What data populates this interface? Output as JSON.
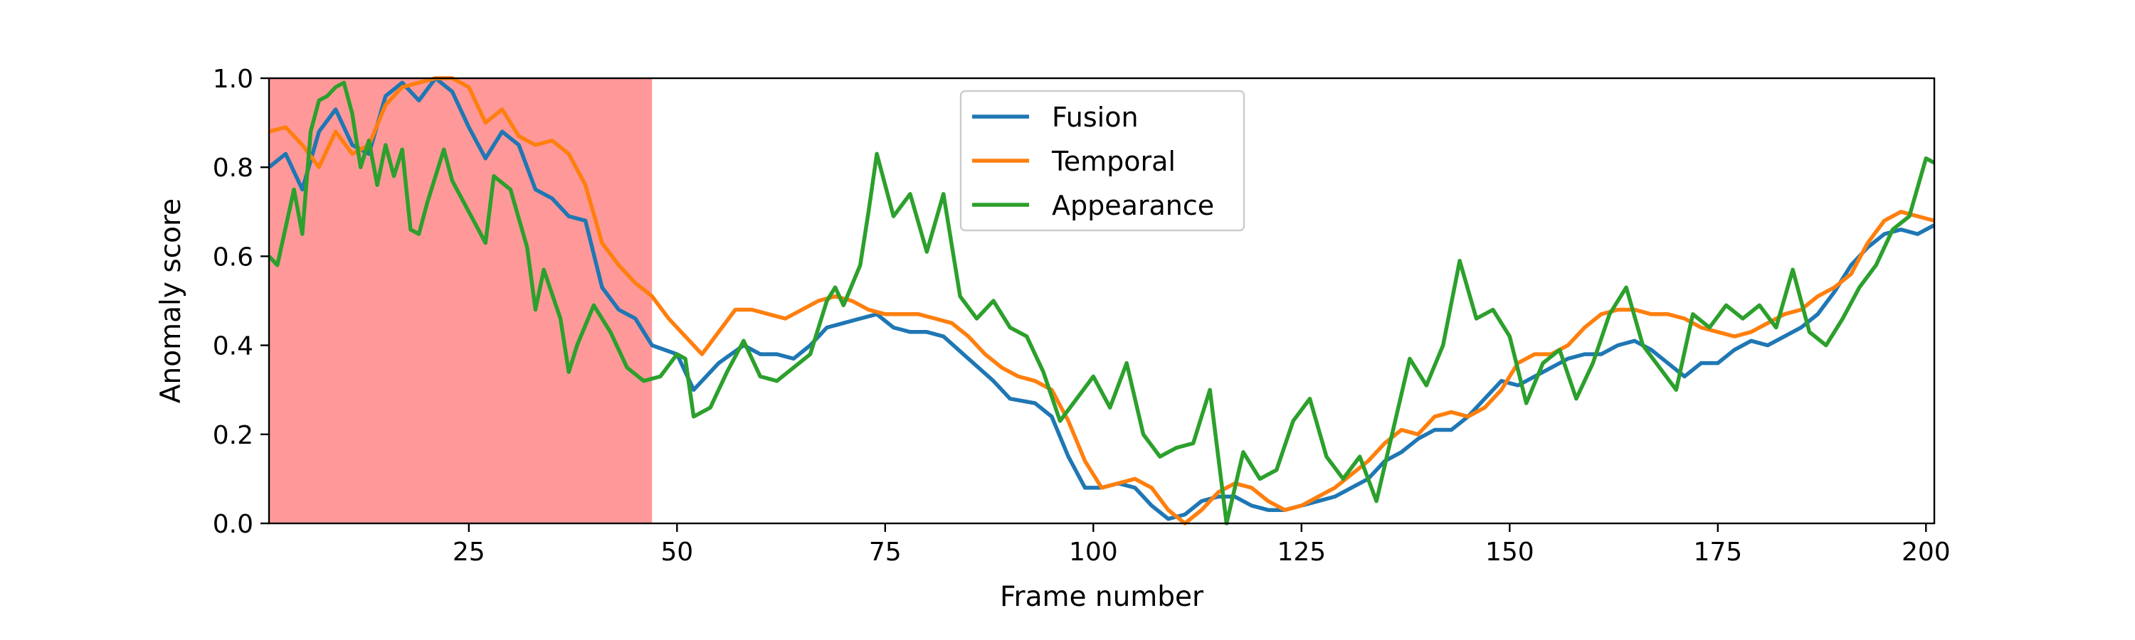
{
  "chart_data": {
    "type": "line",
    "title": "",
    "xlabel": "Frame number",
    "ylabel": "Anomaly score",
    "xlim": [
      1,
      201
    ],
    "ylim": [
      0.0,
      1.0
    ],
    "xticks": [
      25,
      50,
      75,
      100,
      125,
      150,
      175,
      200
    ],
    "xtick_labels": [
      "25",
      "50",
      "75",
      "100",
      "125",
      "150",
      "175",
      "200"
    ],
    "yticks": [
      0.0,
      0.2,
      0.4,
      0.6,
      0.8,
      1.0
    ],
    "ytick_labels": [
      "0.0",
      "0.2",
      "0.4",
      "0.6",
      "0.8",
      "1.0"
    ],
    "grid": false,
    "legend_position": "top-center",
    "highlight_region": {
      "x_start": 1,
      "x_end": 47,
      "color": "#ff9999"
    },
    "series": [
      {
        "name": "Fusion",
        "color": "#1f77b4",
        "x": [
          1,
          3,
          5,
          7,
          9,
          11,
          13,
          15,
          17,
          19,
          21,
          23,
          25,
          27,
          29,
          31,
          33,
          35,
          37,
          39,
          41,
          43,
          45,
          47,
          50,
          52,
          55,
          58,
          60,
          62,
          64,
          66,
          68,
          70,
          72,
          74,
          76,
          78,
          80,
          82,
          85,
          88,
          90,
          93,
          95,
          97,
          99,
          101,
          103,
          105,
          107,
          109,
          111,
          113,
          115,
          117,
          119,
          121,
          123,
          125,
          127,
          129,
          131,
          133,
          135,
          137,
          139,
          141,
          143,
          145,
          147,
          149,
          151,
          153,
          155,
          157,
          159,
          161,
          163,
          165,
          167,
          169,
          171,
          173,
          175,
          177,
          179,
          181,
          183,
          185,
          187,
          189,
          191,
          193,
          195,
          197,
          199,
          201
        ],
        "values": [
          0.8,
          0.83,
          0.75,
          0.88,
          0.93,
          0.85,
          0.83,
          0.96,
          0.99,
          0.95,
          1.0,
          0.97,
          0.89,
          0.82,
          0.88,
          0.85,
          0.75,
          0.73,
          0.69,
          0.68,
          0.53,
          0.48,
          0.46,
          0.4,
          0.38,
          0.3,
          0.36,
          0.4,
          0.38,
          0.38,
          0.37,
          0.4,
          0.44,
          0.45,
          0.46,
          0.47,
          0.44,
          0.43,
          0.43,
          0.42,
          0.37,
          0.32,
          0.28,
          0.27,
          0.24,
          0.15,
          0.08,
          0.08,
          0.09,
          0.08,
          0.04,
          0.01,
          0.02,
          0.05,
          0.06,
          0.06,
          0.04,
          0.03,
          0.03,
          0.04,
          0.05,
          0.06,
          0.08,
          0.1,
          0.14,
          0.16,
          0.19,
          0.21,
          0.21,
          0.24,
          0.28,
          0.32,
          0.31,
          0.33,
          0.35,
          0.37,
          0.38,
          0.38,
          0.4,
          0.41,
          0.39,
          0.36,
          0.33,
          0.36,
          0.36,
          0.39,
          0.41,
          0.4,
          0.42,
          0.44,
          0.47,
          0.52,
          0.58,
          0.62,
          0.65,
          0.66,
          0.65,
          0.67
        ]
      },
      {
        "name": "Temporal",
        "color": "#ff7f0e",
        "x": [
          1,
          3,
          5,
          7,
          9,
          11,
          13,
          15,
          17,
          19,
          21,
          23,
          25,
          27,
          29,
          31,
          33,
          35,
          37,
          39,
          41,
          43,
          45,
          47,
          49,
          51,
          53,
          55,
          57,
          59,
          61,
          63,
          65,
          67,
          69,
          71,
          73,
          75,
          77,
          79,
          81,
          83,
          85,
          87,
          89,
          91,
          93,
          95,
          97,
          99,
          101,
          103,
          105,
          107,
          109,
          111,
          113,
          115,
          117,
          119,
          121,
          123,
          125,
          127,
          129,
          131,
          133,
          135,
          137,
          139,
          141,
          143,
          145,
          147,
          149,
          151,
          153,
          155,
          157,
          159,
          161,
          163,
          165,
          167,
          169,
          171,
          173,
          175,
          177,
          179,
          181,
          183,
          185,
          187,
          189,
          191,
          193,
          195,
          197,
          199,
          201
        ],
        "values": [
          0.88,
          0.89,
          0.85,
          0.8,
          0.88,
          0.83,
          0.85,
          0.94,
          0.98,
          0.99,
          1.0,
          1.0,
          0.98,
          0.9,
          0.93,
          0.87,
          0.85,
          0.86,
          0.83,
          0.76,
          0.63,
          0.58,
          0.54,
          0.51,
          0.46,
          0.42,
          0.38,
          0.43,
          0.48,
          0.48,
          0.47,
          0.46,
          0.48,
          0.5,
          0.51,
          0.5,
          0.48,
          0.47,
          0.47,
          0.47,
          0.46,
          0.45,
          0.42,
          0.38,
          0.35,
          0.33,
          0.32,
          0.3,
          0.23,
          0.14,
          0.08,
          0.09,
          0.1,
          0.08,
          0.03,
          0.0,
          0.03,
          0.07,
          0.09,
          0.08,
          0.05,
          0.03,
          0.04,
          0.06,
          0.08,
          0.11,
          0.14,
          0.18,
          0.21,
          0.2,
          0.24,
          0.25,
          0.24,
          0.26,
          0.3,
          0.36,
          0.38,
          0.38,
          0.4,
          0.44,
          0.47,
          0.48,
          0.48,
          0.47,
          0.47,
          0.46,
          0.44,
          0.43,
          0.42,
          0.43,
          0.45,
          0.47,
          0.48,
          0.51,
          0.53,
          0.56,
          0.63,
          0.68,
          0.7,
          0.69,
          0.68
        ]
      },
      {
        "name": "Appearance",
        "color": "#2ca02c",
        "x": [
          1,
          2,
          4,
          5,
          6,
          7,
          8,
          9,
          10,
          11,
          12,
          13,
          14,
          15,
          16,
          17,
          18,
          19,
          20,
          22,
          23,
          25,
          27,
          28,
          30,
          32,
          33,
          34,
          36,
          37,
          38,
          40,
          42,
          44,
          46,
          48,
          50,
          51,
          52,
          54,
          56,
          58,
          60,
          62,
          64,
          66,
          68,
          69,
          70,
          72,
          73,
          74,
          76,
          78,
          80,
          82,
          84,
          86,
          88,
          90,
          92,
          94,
          96,
          98,
          100,
          102,
          104,
          106,
          108,
          110,
          112,
          114,
          116,
          118,
          120,
          122,
          124,
          126,
          128,
          130,
          132,
          134,
          136,
          138,
          140,
          142,
          144,
          146,
          148,
          150,
          152,
          154,
          156,
          158,
          160,
          162,
          164,
          166,
          168,
          170,
          172,
          174,
          176,
          178,
          180,
          182,
          184,
          186,
          188,
          190,
          192,
          194,
          196,
          198,
          200,
          201
        ],
        "values": [
          0.6,
          0.58,
          0.75,
          0.65,
          0.88,
          0.95,
          0.96,
          0.98,
          0.99,
          0.92,
          0.8,
          0.86,
          0.76,
          0.85,
          0.78,
          0.84,
          0.66,
          0.65,
          0.72,
          0.84,
          0.77,
          0.7,
          0.63,
          0.78,
          0.75,
          0.62,
          0.48,
          0.57,
          0.46,
          0.34,
          0.4,
          0.49,
          0.43,
          0.35,
          0.32,
          0.33,
          0.38,
          0.37,
          0.24,
          0.26,
          0.34,
          0.41,
          0.33,
          0.32,
          0.35,
          0.38,
          0.5,
          0.53,
          0.49,
          0.58,
          0.7,
          0.83,
          0.69,
          0.74,
          0.61,
          0.74,
          0.51,
          0.46,
          0.5,
          0.44,
          0.42,
          0.34,
          0.23,
          0.28,
          0.33,
          0.26,
          0.36,
          0.2,
          0.15,
          0.17,
          0.18,
          0.3,
          0.0,
          0.16,
          0.1,
          0.12,
          0.23,
          0.28,
          0.15,
          0.1,
          0.15,
          0.05,
          0.21,
          0.37,
          0.31,
          0.4,
          0.59,
          0.46,
          0.48,
          0.42,
          0.27,
          0.36,
          0.39,
          0.28,
          0.36,
          0.47,
          0.53,
          0.4,
          0.35,
          0.3,
          0.47,
          0.44,
          0.49,
          0.46,
          0.49,
          0.44,
          0.57,
          0.43,
          0.4,
          0.46,
          0.53,
          0.58,
          0.66,
          0.69,
          0.82,
          0.81
        ]
      }
    ]
  }
}
